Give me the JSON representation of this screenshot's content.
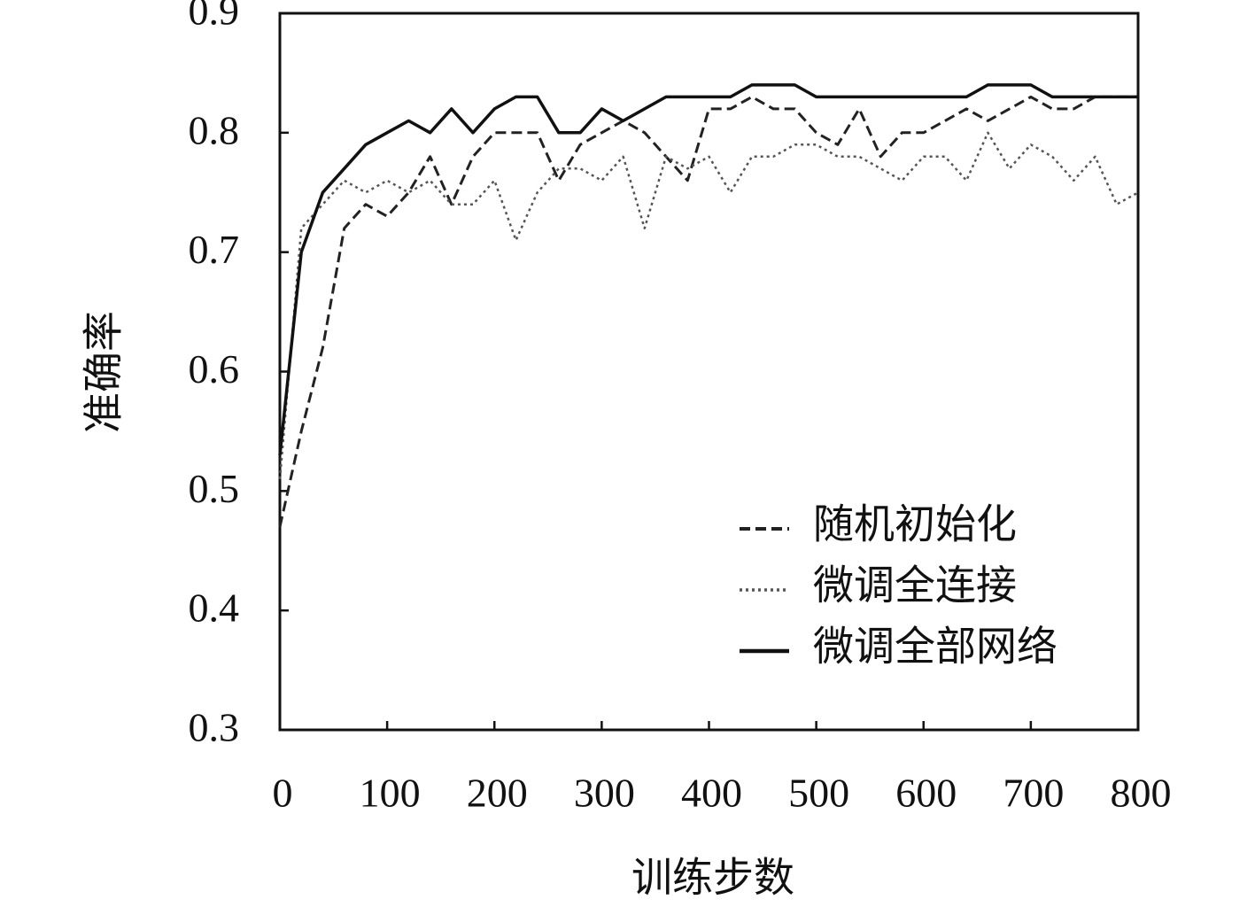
{
  "chart_data": {
    "type": "line",
    "x_label": "训练步数",
    "y_label": "准确率",
    "xlim": [
      0,
      800
    ],
    "ylim": [
      0.3,
      0.9
    ],
    "xticks": [
      0,
      100,
      200,
      300,
      400,
      500,
      600,
      700,
      800
    ],
    "yticks": [
      0.3,
      0.4,
      0.5,
      0.6,
      0.7,
      0.8,
      0.9
    ],
    "legend": "lower right",
    "x": [
      0,
      20,
      40,
      60,
      80,
      100,
      120,
      140,
      160,
      180,
      200,
      220,
      240,
      260,
      280,
      300,
      320,
      340,
      360,
      380,
      400,
      420,
      440,
      460,
      480,
      500,
      520,
      540,
      560,
      580,
      600,
      620,
      640,
      660,
      680,
      700,
      720,
      740,
      760,
      780,
      800
    ],
    "series": [
      {
        "name": "随机初始化",
        "color": "#222222",
        "line_style": "dashed",
        "values": [
          0.47,
          0.55,
          0.62,
          0.72,
          0.74,
          0.73,
          0.75,
          0.78,
          0.74,
          0.78,
          0.8,
          0.8,
          0.8,
          0.76,
          0.79,
          0.8,
          0.81,
          0.8,
          0.78,
          0.76,
          0.82,
          0.82,
          0.83,
          0.82,
          0.82,
          0.8,
          0.79,
          0.82,
          0.78,
          0.8,
          0.8,
          0.81,
          0.82,
          0.81,
          0.82,
          0.83,
          0.82,
          0.82,
          0.83,
          0.83,
          0.83
        ]
      },
      {
        "name": "微调全连接",
        "color": "#555555",
        "line_style": "dotted",
        "values": [
          0.51,
          0.72,
          0.74,
          0.76,
          0.75,
          0.76,
          0.75,
          0.76,
          0.74,
          0.74,
          0.76,
          0.71,
          0.75,
          0.77,
          0.77,
          0.76,
          0.78,
          0.72,
          0.78,
          0.77,
          0.78,
          0.75,
          0.78,
          0.78,
          0.79,
          0.79,
          0.78,
          0.78,
          0.77,
          0.76,
          0.78,
          0.78,
          0.76,
          0.8,
          0.77,
          0.79,
          0.78,
          0.76,
          0.78,
          0.74,
          0.75
        ]
      },
      {
        "name": "微调全部网络",
        "color": "#111111",
        "line_style": "solid",
        "values": [
          0.53,
          0.7,
          0.75,
          0.77,
          0.79,
          0.8,
          0.81,
          0.8,
          0.82,
          0.8,
          0.82,
          0.83,
          0.83,
          0.8,
          0.8,
          0.82,
          0.81,
          0.82,
          0.83,
          0.83,
          0.83,
          0.83,
          0.84,
          0.84,
          0.84,
          0.83,
          0.83,
          0.83,
          0.83,
          0.83,
          0.83,
          0.83,
          0.83,
          0.84,
          0.84,
          0.84,
          0.83,
          0.83,
          0.83,
          0.83,
          0.83
        ]
      }
    ]
  }
}
